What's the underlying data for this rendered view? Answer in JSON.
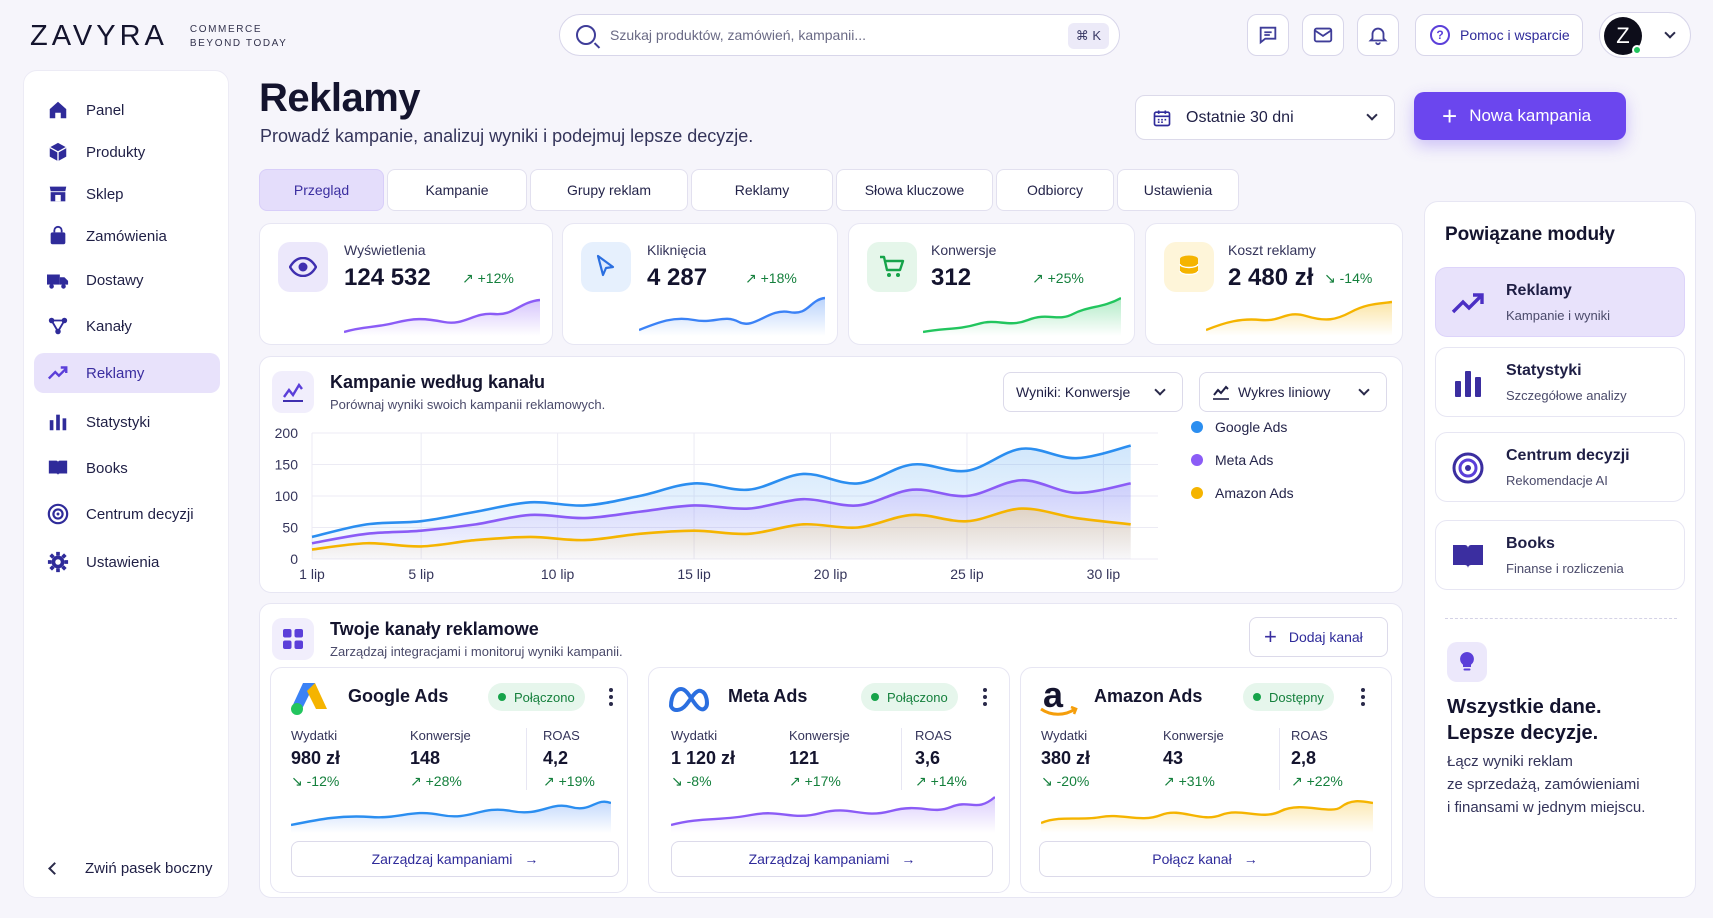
{
  "brand": {
    "name": "ZAVYRA",
    "tagline_1": "COMMERCE",
    "tagline_2": "BEYOND TODAY"
  },
  "search": {
    "placeholder": "Szukaj produktów, zamówień, kampanii...",
    "shortcut": "⌘ K"
  },
  "header": {
    "help_label": "Pomoc i wsparcie",
    "avatar_letter": "Z"
  },
  "sidebar": {
    "items": [
      {
        "label": "Panel",
        "icon": "home-icon"
      },
      {
        "label": "Produkty",
        "icon": "box-icon"
      },
      {
        "label": "Sklep",
        "icon": "store-icon"
      },
      {
        "label": "Zamówienia",
        "icon": "bag-icon"
      },
      {
        "label": "Dostawy",
        "icon": "truck-icon"
      },
      {
        "label": "Kanały",
        "icon": "channels-icon"
      },
      {
        "label": "Reklamy",
        "icon": "trend-icon",
        "active": true
      },
      {
        "label": "Statystyki",
        "icon": "bar-chart-icon"
      },
      {
        "label": "Books",
        "icon": "book-icon"
      },
      {
        "label": "Centrum decyzji",
        "icon": "target-icon"
      },
      {
        "label": "Ustawienia",
        "icon": "gear-icon"
      }
    ],
    "collapse_label": "Zwiń pasek boczny"
  },
  "page": {
    "title": "Reklamy",
    "subtitle": "Prowadź kampanie, analizuj wyniki i podejmuj lepsze decyzje.",
    "date_range": "Ostatnie 30 dni",
    "new_campaign_label": "Nowa kampania"
  },
  "tabs": [
    {
      "label": "Przegląd",
      "active": true
    },
    {
      "label": "Kampanie"
    },
    {
      "label": "Grupy reklam"
    },
    {
      "label": "Reklamy"
    },
    {
      "label": "Słowa kluczowe"
    },
    {
      "label": "Odbiorcy"
    },
    {
      "label": "Ustawienia"
    }
  ],
  "kpis": [
    {
      "label": "Wyświetlenia",
      "value": "124 532",
      "change": "↗ +12%",
      "color": "#8b5cf6"
    },
    {
      "label": "Kliknięcia",
      "value": "4 287",
      "change": "↗ +18%",
      "color": "#3b82f6"
    },
    {
      "label": "Konwersje",
      "value": "312",
      "change": "↗ +25%",
      "color": "#22c55e"
    },
    {
      "label": "Koszt reklamy",
      "value": "2 480 zł",
      "change": "↘ -14%",
      "color": "#f5b400"
    }
  ],
  "chart_panel": {
    "title": "Kampanie według kanału",
    "subtitle": "Porównaj wyniki swoich kampanii reklamowych.",
    "metric_select": "Wyniki: Konwersje",
    "type_select": "Wykres liniowy"
  },
  "chart_data": {
    "type": "line",
    "x_ticks": [
      "1 lip",
      "5 lip",
      "10 lip",
      "15 lip",
      "20 lip",
      "25 lip",
      "30 lip"
    ],
    "y_ticks": [
      "200",
      "150",
      "100",
      "50",
      "0"
    ],
    "ylim": [
      0,
      200
    ],
    "grid": true,
    "legend": "right",
    "x": [
      1,
      3,
      5,
      7,
      9,
      11,
      13,
      15,
      17,
      19,
      21,
      23,
      25,
      27,
      29,
      31
    ],
    "series": [
      {
        "name": "Google Ads",
        "color": "#2b8ef0",
        "values": [
          35,
          55,
          60,
          75,
          90,
          85,
          100,
          120,
          110,
          135,
          120,
          150,
          140,
          175,
          160,
          180
        ]
      },
      {
        "name": "Meta Ads",
        "color": "#8b5cf6",
        "values": [
          25,
          40,
          45,
          55,
          70,
          65,
          75,
          85,
          80,
          95,
          85,
          110,
          100,
          125,
          105,
          120
        ]
      },
      {
        "name": "Amazon Ads",
        "color": "#f5b400",
        "values": [
          15,
          25,
          20,
          30,
          35,
          30,
          40,
          45,
          40,
          55,
          50,
          70,
          60,
          80,
          65,
          55
        ]
      }
    ]
  },
  "channels_panel": {
    "title": "Twoje kanały reklamowe",
    "subtitle": "Zarządzaj integracjami i monitoruj wyniki kampanii.",
    "add_label": "Dodaj kanał"
  },
  "channels": [
    {
      "name": "Google Ads",
      "status": "Połączono",
      "color": "#3b82f6",
      "metrics": [
        {
          "label": "Wydatki",
          "value": "980 zł",
          "change": "↘ -12%"
        },
        {
          "label": "Konwersje",
          "value": "148",
          "change": "↗ +28%"
        },
        {
          "label": "ROAS",
          "value": "4,2",
          "change": "↗ +19%"
        }
      ],
      "button": "Zarządzaj kampaniami"
    },
    {
      "name": "Meta Ads",
      "status": "Połączono",
      "color": "#8b5cf6",
      "metrics": [
        {
          "label": "Wydatki",
          "value": "1 120 zł",
          "change": "↘ -8%"
        },
        {
          "label": "Konwersje",
          "value": "121",
          "change": "↗ +17%"
        },
        {
          "label": "ROAS",
          "value": "3,6",
          "change": "↗ +14%"
        }
      ],
      "button": "Zarządzaj kampaniami"
    },
    {
      "name": "Amazon Ads",
      "status": "Dostępny",
      "color": "#f5b400",
      "metrics": [
        {
          "label": "Wydatki",
          "value": "380 zł",
          "change": "↘ -20%"
        },
        {
          "label": "Konwersje",
          "value": "43",
          "change": "↗ +31%"
        },
        {
          "label": "ROAS",
          "value": "2,8",
          "change": "↗ +22%"
        }
      ],
      "button": "Połącz kanał"
    }
  ],
  "right_panel": {
    "title": "Powiązane moduły",
    "modules": [
      {
        "name": "Reklamy",
        "sub": "Kampanie i wyniki",
        "active": true
      },
      {
        "name": "Statystyki",
        "sub": "Szczegółowe analizy"
      },
      {
        "name": "Centrum decyzji",
        "sub": "Rekomendacje AI"
      },
      {
        "name": "Books",
        "sub": "Finanse i rozliczenia"
      }
    ],
    "headline_1": "Wszystkie dane.",
    "headline_2": "Lepsze decyzje.",
    "text_1": "Łącz wyniki reklam",
    "text_2": "ze sprzedażą, zamówieniami",
    "text_3": "i finansami w jednym miejscu."
  }
}
